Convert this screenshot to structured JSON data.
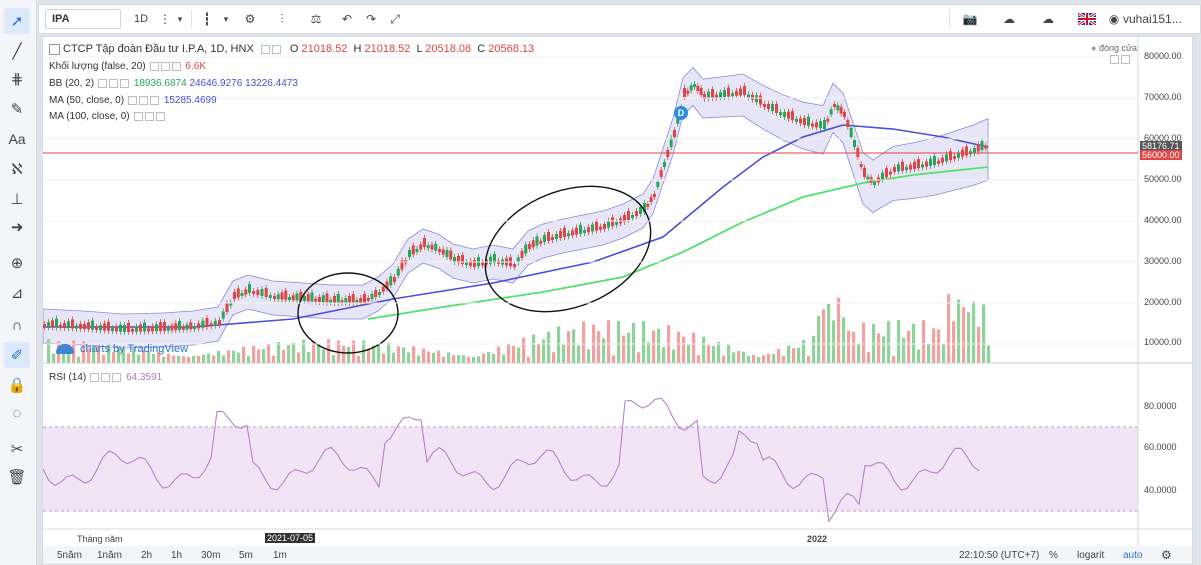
{
  "toolbar": {
    "symbol": "IPA",
    "interval": "1D",
    "user": "vuhai151...",
    "flag": "UK flag"
  },
  "legend": {
    "title": "CTCP Tập đoàn Đầu tư I.P.A, 1D, HNX",
    "o_label": "O",
    "o_value": "21018.52",
    "h_label": "H",
    "h_value": "21018.52",
    "l_label": "L",
    "l_value": "20518.08",
    "c_label": "C",
    "c_value": "20568.13",
    "volume_label": "Khối lượng (false, 20)",
    "volume_value": "6.6K",
    "bb_label": "BB (20, 2)",
    "bb_basis": "18936.6874",
    "bb_upper": "24646.9276",
    "bb_lower": "13226.4473",
    "ma50_label": "MA (50, close, 0)",
    "ma50_value": "15285.4699",
    "ma100_label": "MA (100, close, 0)",
    "status": "đóng cửa",
    "badge": "D"
  },
  "price_axis": {
    "labels": [
      "80000.00",
      "70000.00",
      "60000.00",
      "50000.00",
      "40000.00",
      "30000.00",
      "20000.00",
      "10000.00"
    ],
    "current_price": "58176.71",
    "line_price": "56000.00"
  },
  "rsi": {
    "label": "RSI (14)",
    "value": "64.3591",
    "axis": [
      "80.0000",
      "60.0000",
      "40.0000"
    ]
  },
  "time_axis": {
    "label": "Tháng năm",
    "date_marker": "2021-07-05",
    "year": "2022"
  },
  "bottom": {
    "ranges": [
      "5năm",
      "1năm",
      "2h",
      "1h",
      "30m",
      "5m",
      "1m"
    ],
    "clock": "22:10:50 (UTC+7)",
    "percent": "%",
    "log": "logarit",
    "auto": "auto"
  },
  "attribution": "charts by TradingView",
  "colors": {
    "up": "#26a65b",
    "down": "#e04545",
    "bb_fill": "#c8c8ee",
    "ma50": "#4a4fd8",
    "ma100": "#52e06a",
    "rsi": "#b07ac4",
    "price_line": "#e04545"
  }
}
